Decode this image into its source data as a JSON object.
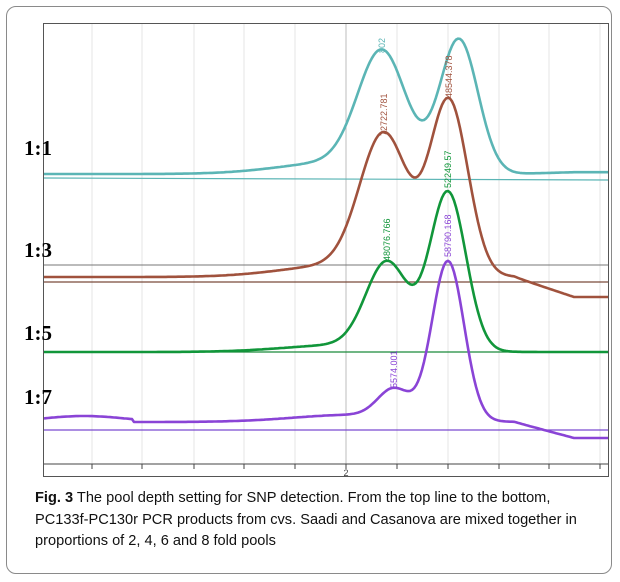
{
  "figure": {
    "pool_labels": [
      "1:1",
      "1:3",
      "1:5",
      "1:7"
    ],
    "x_tick_label": "2",
    "caption_label": "Fig. 3",
    "caption_text": "The pool depth setting for SNP detection. From the top line to the bottom, PC133f-PC130r PCR products from cvs. Saadi and Casanova are mixed together in proportions of 2, 4, 6 and 8 fold pools"
  },
  "chart_data": {
    "type": "line",
    "title": "",
    "xlabel": "",
    "ylabel": "",
    "grid": "vertical",
    "x_ticks": [
      "2"
    ],
    "series": [
      {
        "name": "1:1",
        "color": "#5bb5b5",
        "peak_labels": [
          "802",
          ""
        ]
      },
      {
        "name": "1:3",
        "color": "#a0523d",
        "peak_labels": [
          "72722.781",
          "48544.378"
        ]
      },
      {
        "name": "1:5",
        "color": "#11963a",
        "peak_labels": [
          "48076.766",
          "52249.57"
        ]
      },
      {
        "name": "1:7",
        "color": "#8a44d6",
        "peak_labels": [
          "5574.001",
          "58790.168"
        ]
      }
    ]
  }
}
